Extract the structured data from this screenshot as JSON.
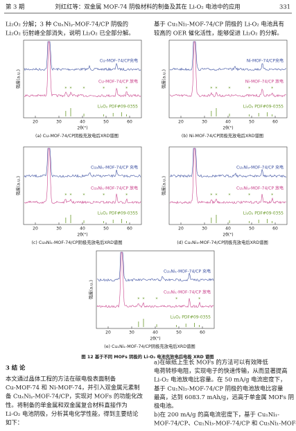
{
  "header": {
    "issue": "第 3 期",
    "title": "刘红红等：双金属 MOF-74 阴极材料的制备及其在 Li-O₂ 电池中的应用",
    "page": "331"
  },
  "top_text": {
    "left": [
      "Li₂O₂ 分解；3 种 CuₓNiᵧ-MOF-74/CP 阴极的",
      "Li₂O₂ 衍射峰全部消失，说明 Li₂O₂ 已全部分解。"
    ],
    "right": [
      "基于 Cu₁Ni₁-MOF-74/CP 阴极的 Li-O₂ 电池具有",
      "较高的 OER 催化活性，能够促进 Li₂O₂ 的分解。"
    ]
  },
  "figure": {
    "caption": "图 12  基于不同 MOFs 阴极的 Li-O₂ 电池充放电后电极 XRD 谱图",
    "panels": [
      {
        "labels": [
          "Cu-MOF-74/CP充电",
          "Cu-MOF-74/CP 放电",
          "Li₂O₂ PDF#09-0355"
        ],
        "y_label": "强度(a.u.)",
        "x_label": "2θ(°)",
        "x_ticks": [
          20,
          30,
          40,
          50,
          60
        ],
        "caption": "(a) Cu-MOF-74/CP阴极充放电后XRD谱图"
      },
      {
        "labels": [
          "Ni-MOF-74/CP充电",
          "Ni-MOF-74/CP 放电",
          "Li₂O₂ PDF#09-0355"
        ],
        "y_label": "强度(a.u.)",
        "x_label": "2θ(°)",
        "x_ticks": [
          20,
          30,
          40,
          50,
          60
        ],
        "caption": "(b) Ni-MOF-74/CP阴极充放电后XRD谱图"
      },
      {
        "labels": [
          "Cu₃Ni₁-MOF-74/CP 充电",
          "Cu₃Ni₁-MOF-74/CP 放电",
          "Li₂O₂ PDF#09-0355"
        ],
        "y_label": "强度(a.u.)",
        "x_label": "2θ(°)",
        "x_ticks": [
          20,
          30,
          40,
          50,
          60
        ],
        "caption": "(c) Cu₃Ni₁-MOF-74/CP阴极充放电后XRD谱图"
      },
      {
        "labels": [
          "Cu₁Ni₃-MOF-74/CP 充电",
          "Cu₁Ni₃-MOF-74/CP 放电",
          "Li₂O₂ PDF#09-0355"
        ],
        "y_label": "强度(a.u.)",
        "x_label": "2θ(°)",
        "x_ticks": [
          20,
          30,
          40,
          50,
          60
        ],
        "caption": "(d) Cu₁Ni₃-MOF-74/CP阴极充放电后XRD谱图"
      },
      {
        "labels": [
          "Cu₁Ni₁-MOF-74/CP 充电",
          "Cu₁Ni₁-MOF-74/CP 放电",
          "Li₂O₂ PDF#09-0355"
        ],
        "y_label": "强度(a.u.)",
        "x_label": "2θ(°)",
        "x_ticks": [
          20,
          30,
          40,
          50,
          60
        ],
        "caption": "(e) Cu₁Ni₁-MOF-74/CP阴极充放电后XRD谱图"
      }
    ]
  },
  "section": {
    "title": "3  结  论",
    "left": [
      "本文通过晶体工程的方法在碳电极表面制备",
      "Cu-MOF-74 和 Ni-MOF-74，并引入双金属元素制",
      "备 CuₓNiᵧ-MOF-74/CP，实现对 MOFs 的功能化改",
      "性。将制备的单金属和双金属复合材料直接作为",
      "Li-O₂ 电池阴极，分析其电化学性能，得到主要结论",
      "如下："
    ],
    "right": [
      "a)在碳纸上生长 MOFs 的方法可以有效降低",
      "电荷转移电阻，实现电子的快速传输，从而显著提高",
      "Li-O₂ 电池放电比容量。在 50 mA/g 电流密度下，",
      "基于 Cu₁Ni₁-MOF-74/CP 阴极的电池放电比容量",
      "最高，达到 6083.7 mAh/g，远高于单金属 MOFs 阴",
      "极电池。",
      "b)在 200 mA/g 的高电流密度下，基于 Cu₁Ni₁-",
      "MOF-74/CP、Cu₁Ni₃-MOF-74/CP 和 Cu₃Ni₁-MOF-"
    ]
  }
}
